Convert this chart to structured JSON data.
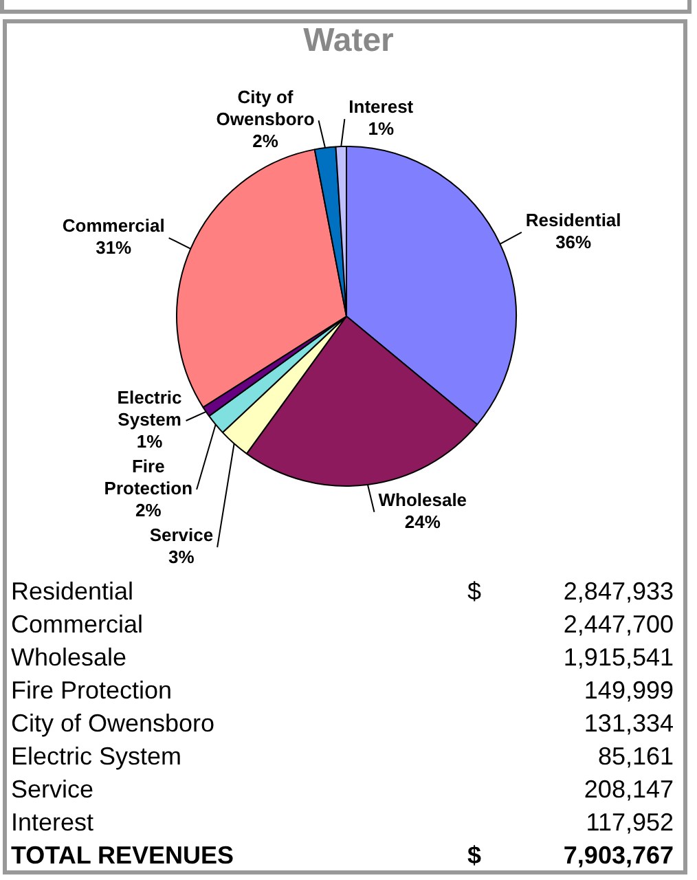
{
  "chart_data": [
    {
      "type": "pie",
      "title": "Water",
      "categories": [
        "Residential",
        "Wholesale",
        "Service",
        "Fire Protection",
        "Electric System",
        "Commercial",
        "City of Owensboro",
        "Interest"
      ],
      "values": [
        36,
        24,
        3,
        2,
        1,
        31,
        2,
        1
      ],
      "value_labels": [
        "36%",
        "24%",
        "3%",
        "2%",
        "1%",
        "31%",
        "2%",
        "1%"
      ],
      "colors": [
        "#8080ff",
        "#8e1a5e",
        "#ffffc0",
        "#80e0e0",
        "#660080",
        "#ff8080",
        "#0070c0",
        "#c0c0ff"
      ],
      "legend": false
    },
    {
      "type": "other",
      "categories": [
        "Residential",
        "Commercial",
        "Wholesale",
        "Fire Protection",
        "City of Owensboro",
        "Electric System",
        "Service",
        "Interest",
        "TOTAL REVENUES"
      ],
      "value_labels": [
        "$ 2,847,933",
        "2,447,700",
        "1,915,541",
        "149,999",
        "131,334",
        "85,161",
        "208,147",
        "117,952",
        "$ 7,903,767"
      ]
    }
  ]
}
